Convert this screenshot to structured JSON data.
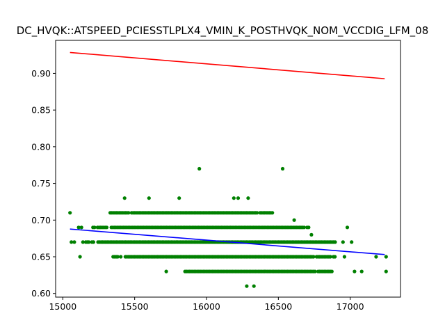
{
  "chart_data": {
    "type": "scatter",
    "title": "DC_HVQK::ATSPEED_PCIESSTLPLX4_VMIN_K_POSTHVQK_NOM_VCCDIG_LFM_08",
    "xlabel": "",
    "ylabel": "",
    "xlim": [
      14950,
      17350
    ],
    "ylim": [
      0.595,
      0.945
    ],
    "xticks": [
      15000,
      15500,
      16000,
      16500,
      17000
    ],
    "xtick_labels": [
      "15000",
      "15500",
      "16000",
      "16500",
      "17000"
    ],
    "yticks": [
      0.6,
      0.65,
      0.7,
      0.75,
      0.8,
      0.85,
      0.9
    ],
    "ytick_labels": [
      "0.60",
      "0.65",
      "0.70",
      "0.75",
      "0.80",
      "0.85",
      "0.90"
    ],
    "grid": false,
    "legend": "none",
    "scatter_color": "#008000",
    "points": [
      [
        15050,
        0.71
      ],
      [
        15110,
        0.69
      ],
      [
        15130,
        0.69
      ],
      [
        15120,
        0.65
      ],
      [
        15060,
        0.67
      ],
      [
        15080,
        0.67
      ],
      [
        15140,
        0.67
      ],
      [
        15430,
        0.73
      ],
      [
        15600,
        0.73
      ],
      [
        15810,
        0.73
      ],
      [
        16190,
        0.73
      ],
      [
        16220,
        0.73
      ],
      [
        16290,
        0.73
      ],
      [
        15950,
        0.77
      ],
      [
        16530,
        0.77
      ],
      [
        16280,
        0.61
      ],
      [
        16330,
        0.61
      ],
      [
        15720,
        0.63
      ],
      [
        17030,
        0.63
      ],
      [
        17080,
        0.63
      ],
      [
        17250,
        0.63
      ],
      [
        16960,
        0.65
      ],
      [
        17180,
        0.65
      ],
      [
        17250,
        0.65
      ],
      [
        16950,
        0.67
      ],
      [
        17010,
        0.67
      ],
      [
        16730,
        0.68
      ],
      [
        16980,
        0.69
      ],
      [
        16610,
        0.7
      ]
    ],
    "point_bands": [
      {
        "y": 0.63,
        "x_min": 15840,
        "x_max": 16880
      },
      {
        "y": 0.65,
        "x_min": 15350,
        "x_max": 16900
      },
      {
        "y": 0.67,
        "x_min": 15160,
        "x_max": 16900
      },
      {
        "y": 0.69,
        "x_min": 15210,
        "x_max": 16720
      },
      {
        "y": 0.71,
        "x_min": 15330,
        "x_max": 16460
      }
    ],
    "lines": [
      {
        "color": "#ff0000",
        "x": [
          15050,
          17240
        ],
        "y": [
          0.9285,
          0.8927
        ]
      },
      {
        "color": "#0000ff",
        "x": [
          15050,
          17240
        ],
        "y": [
          0.6878,
          0.653
        ]
      }
    ]
  }
}
